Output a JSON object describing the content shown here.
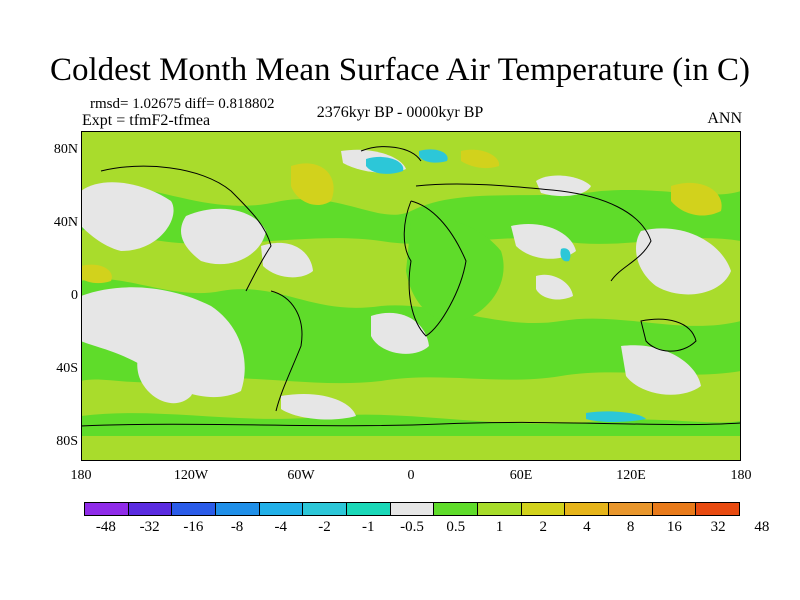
{
  "title": "Coldest Month Mean Surface Air Temperature (in C)",
  "stats": "rmsd= 1.02675 diff= 0.818802",
  "experiment": "Expt = tfmF2-tfmea",
  "period": "2376kyr BP - 0000kyr BP",
  "season": "ANN",
  "y_ticks": [
    "80N",
    "40N",
    "0",
    "40S",
    "80S"
  ],
  "x_ticks": [
    "180",
    "120W",
    "60W",
    "0",
    "60E",
    "120E",
    "180"
  ],
  "colorbar": {
    "colors": [
      "#8f2be8",
      "#5a2be0",
      "#2a5be8",
      "#1f8fe8",
      "#22b0e8",
      "#2cc7d8",
      "#1ad8b8",
      "#e6e6e6",
      "#5fdc2a",
      "#a7dc2a",
      "#d2d21c",
      "#e6b41a",
      "#e8962c",
      "#e87a1a",
      "#e84a10"
    ],
    "labels": [
      "-48",
      "-32",
      "-16",
      "-8",
      "-4",
      "-2",
      "-1",
      "-0.5",
      "0.5",
      "1",
      "2",
      "4",
      "8",
      "16",
      "32",
      "48"
    ]
  }
}
